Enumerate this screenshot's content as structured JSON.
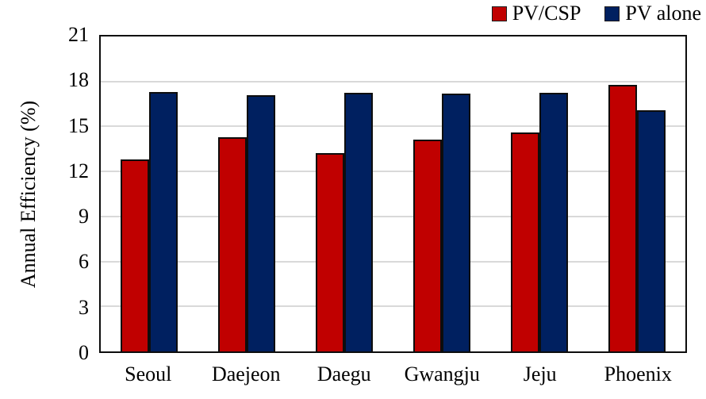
{
  "chart_data": {
    "type": "bar",
    "title": "",
    "xlabel": "",
    "ylabel": "Annual Efficiency (%)",
    "categories": [
      "Seoul",
      "Daejeon",
      "Daegu",
      "Gwangju",
      "Jeju",
      "Phoenix"
    ],
    "series": [
      {
        "name": "PV/CSP",
        "color": "#c00000",
        "values": [
          12.8,
          14.3,
          13.2,
          14.1,
          14.6,
          17.8
        ]
      },
      {
        "name": "PV alone",
        "color": "#002060",
        "values": [
          17.3,
          17.1,
          17.25,
          17.2,
          17.25,
          16.1
        ]
      }
    ],
    "ylim": [
      0,
      21
    ],
    "yticks": [
      0,
      3,
      6,
      9,
      12,
      15,
      18,
      21
    ],
    "grid": true,
    "gridline_color": "#d9d9d9",
    "legend_position": "top-right"
  }
}
